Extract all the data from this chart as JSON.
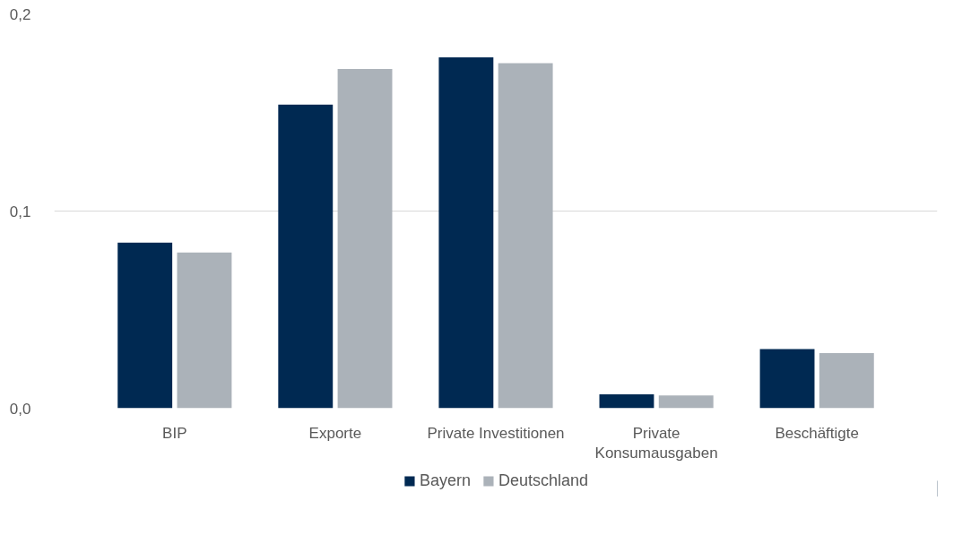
{
  "chart_data": {
    "type": "bar",
    "categories": [
      "BIP",
      "Exporte",
      "Private Investitionen",
      "Private Konsumausgaben",
      "Beschäftigte"
    ],
    "series": [
      {
        "name": "Bayern",
        "color": "#002952",
        "values": [
          0.084,
          0.154,
          0.178,
          0.007,
          0.03
        ]
      },
      {
        "name": "Deutschland",
        "color": "#abb2b9",
        "values": [
          0.079,
          0.172,
          0.175,
          0.0065,
          0.028
        ]
      }
    ],
    "ylim": [
      0,
      0.2
    ],
    "yticks": [
      {
        "value": 0,
        "label": "0,0"
      },
      {
        "value": 0.1,
        "label": "0,1"
      },
      {
        "value": 0.2,
        "label": "0,2"
      }
    ],
    "grid": "y",
    "legend": "bottom"
  }
}
